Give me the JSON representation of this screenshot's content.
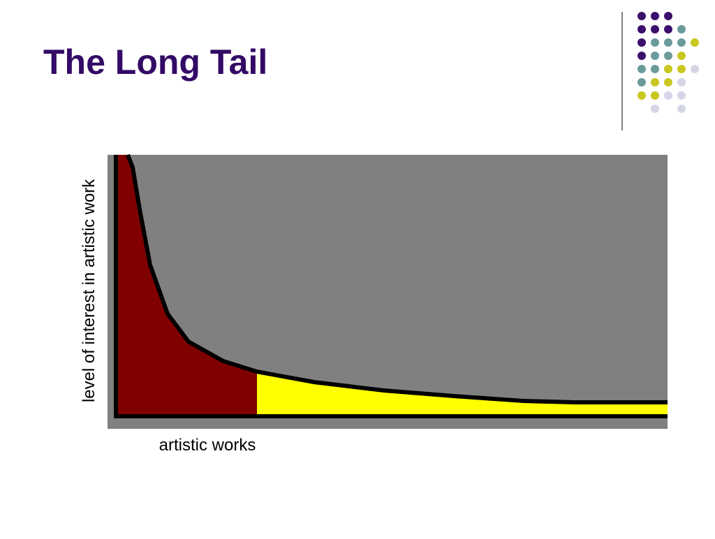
{
  "title": "The Long Tail",
  "diagram": {
    "y_axis_label": "level of interest in artistic work",
    "x_axis_label": "artistic works"
  }
}
